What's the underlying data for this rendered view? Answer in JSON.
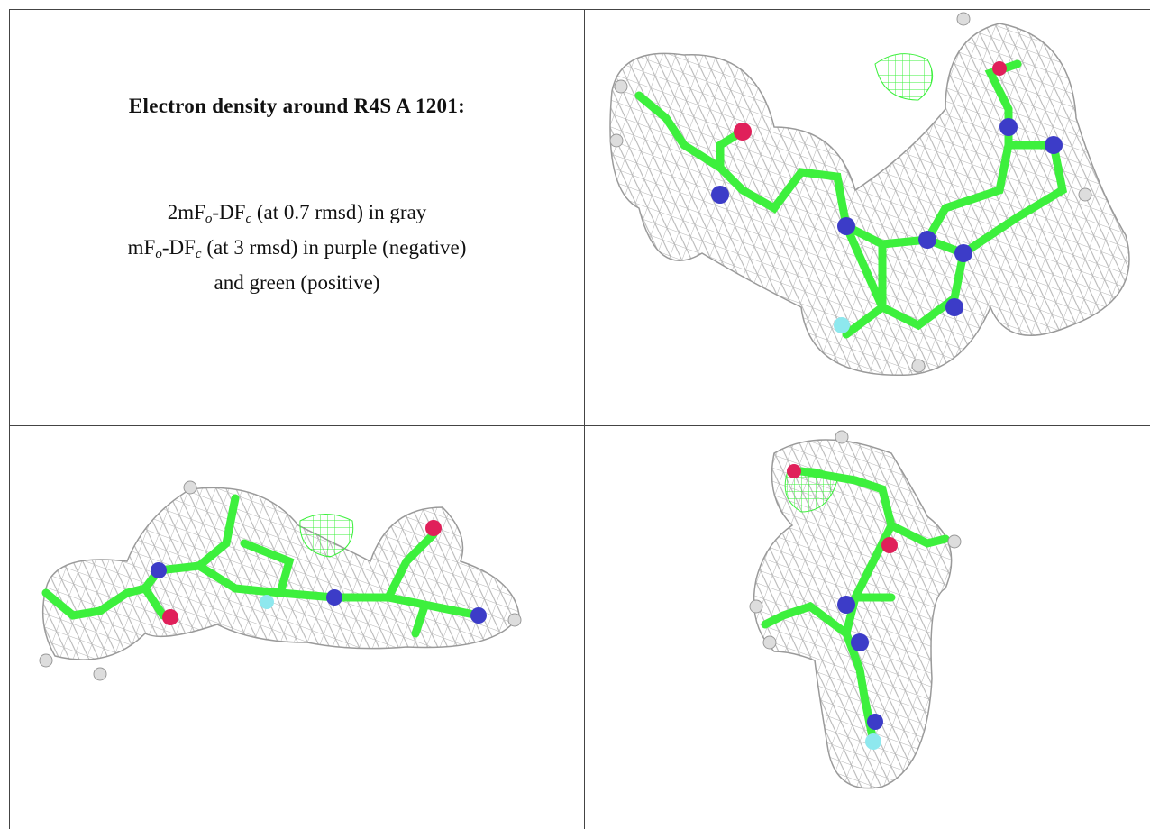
{
  "legend": {
    "title": "Electron density around R4S A 1201:",
    "lines": [
      [
        {
          "text": "2mF"
        },
        {
          "sub": "o"
        },
        {
          "text": "-DF"
        },
        {
          "sub": "c"
        },
        {
          "text": " (at 0.7 rmsd) in gray"
        }
      ],
      [
        {
          "text": "mF"
        },
        {
          "sub": "o"
        },
        {
          "text": "-DF"
        },
        {
          "sub": "c"
        },
        {
          "text": " (at 3 rmsd) in purple (negative)"
        }
      ],
      [
        {
          "text": "and green (positive)"
        }
      ]
    ]
  }
}
